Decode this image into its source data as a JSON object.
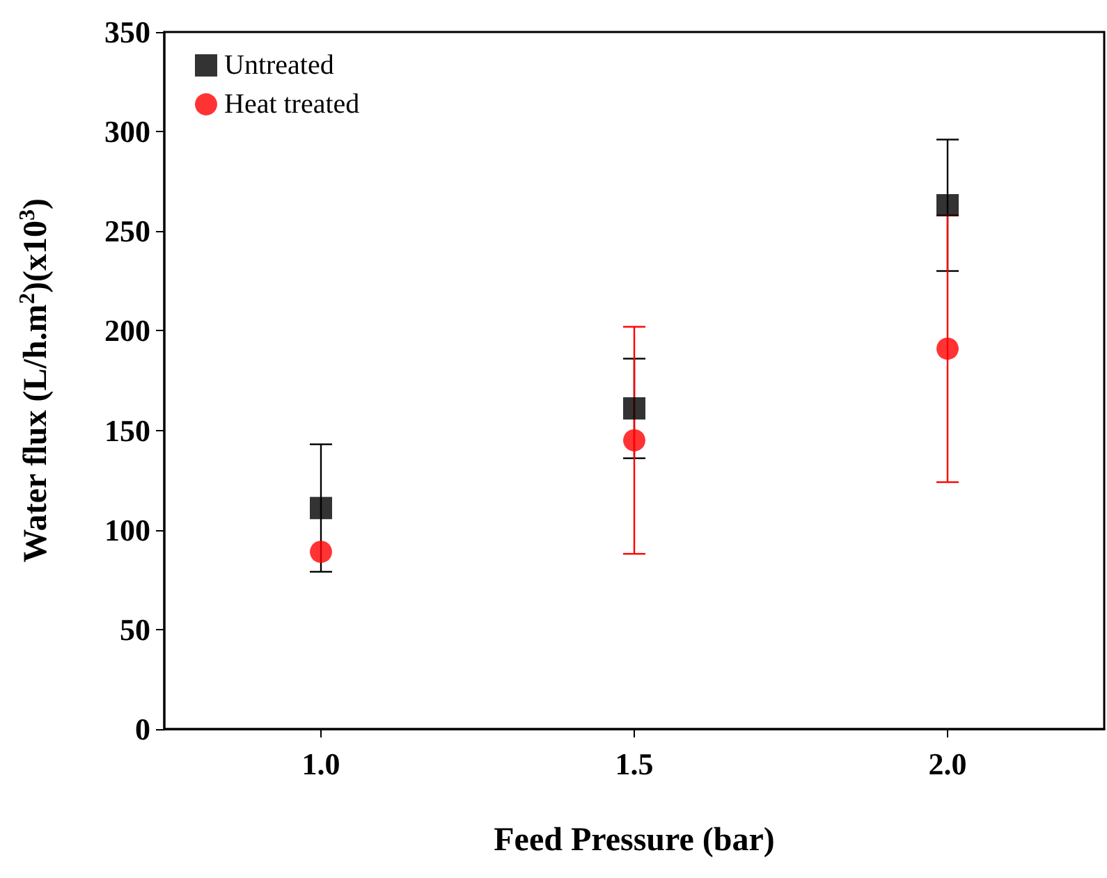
{
  "chart_data": {
    "type": "scatter",
    "xlabel": "Feed Pressure (bar)",
    "ylabel": "Water flux (L/h.m$^{2}$)(x10$^{3}$)",
    "xlim": [
      0.75,
      2.25
    ],
    "xticks": [
      {
        "value": 1,
        "label": "1.0"
      },
      {
        "value": 1.5,
        "label": "1.5"
      },
      {
        "value": 2,
        "label": "2.0"
      }
    ],
    "ylim": [
      0,
      350
    ],
    "yticks": [
      0,
      50,
      100,
      150,
      200,
      250,
      300,
      350
    ],
    "grid": false,
    "legend": "top left",
    "series": [
      {
        "name": "Untreated",
        "color": "#000000",
        "marker": "square",
        "x": [
          1,
          1.5,
          2
        ],
        "values": [
          111,
          161,
          263
        ],
        "errors": [
          32,
          25,
          33
        ]
      },
      {
        "name": "Heat treated",
        "color": "#ff0000",
        "marker": "circle",
        "x": [
          1,
          1.5,
          2
        ],
        "values": [
          89,
          145,
          191
        ],
        "errors": [
          null,
          57,
          67
        ]
      }
    ]
  }
}
